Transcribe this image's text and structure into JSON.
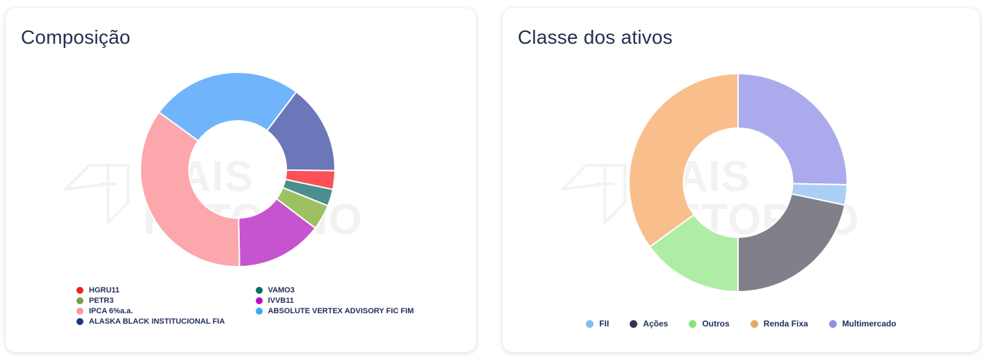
{
  "page_background": "#ffffff",
  "text_colors": {
    "title": "#223050",
    "legend": "#1f2c5c",
    "watermark": "#f2f2f2"
  },
  "cards": [
    {
      "title": "Composição",
      "watermark": {
        "line1": "MAIS",
        "line2": "RETORNO"
      }
    },
    {
      "title": "Classe dos ativos",
      "watermark": {
        "line1": "MAIS",
        "line2": "RETORNO"
      }
    }
  ],
  "chart_data": [
    {
      "type": "pie",
      "subtype": "donut",
      "title": "Composição",
      "unit": "percent_of_total",
      "series": [
        {
          "label": "HGRU11",
          "value": 3.1,
          "slice_color": "#fb5157",
          "legend_color": "#ee2128"
        },
        {
          "label": "PETR3",
          "value": 4.2,
          "slice_color": "#9dc162",
          "legend_color": "#7d9e3e"
        },
        {
          "label": "IPCA 6%a.a.",
          "value": 35.3,
          "slice_color": "#fba7ac",
          "legend_color": "#f7989f"
        },
        {
          "label": "ALASKA BLACK INSTITUCIONAL FIA",
          "value": 14.9,
          "slice_color": "#6b77b8",
          "legend_color": "#203487"
        },
        {
          "label": "VAMO3",
          "value": 2.8,
          "slice_color": "#4b8e91",
          "legend_color": "#0a6e68"
        },
        {
          "label": "IVVB11",
          "value": 14.4,
          "slice_color": "#c653cf",
          "legend_color": "#bb10c4"
        },
        {
          "label": "ABSOLUTE VERTEX ADVISORY FIC FIM",
          "value": 25.3,
          "slice_color": "#70b5fc",
          "legend_color": "#3ea5fd"
        }
      ],
      "draw_order_clockwise": [
        "ABSOLUTE VERTEX ADVISORY FIC FIM",
        "ALASKA BLACK INSTITUCIONAL FIA",
        "HGRU11",
        "VAMO3",
        "PETR3",
        "IVVB11",
        "IPCA 6%a.a."
      ],
      "start_angle_deg_from_top": -54,
      "donut_hole_ratio": 0.5,
      "outer_radius_px": 140,
      "legend_position": "bottom-left",
      "legend_columns": 2,
      "data_labels": "none",
      "grid": "off"
    },
    {
      "type": "pie",
      "subtype": "donut",
      "title": "Classe dos ativos",
      "unit": "percent_of_total",
      "series": [
        {
          "label": "FII",
          "value": 3.0,
          "slice_color": "#abcff4",
          "legend_color": "#7fbfee"
        },
        {
          "label": "Ações",
          "value": 21.7,
          "slice_color": "#80808a",
          "legend_color": "#33334d"
        },
        {
          "label": "Outros",
          "value": 15.0,
          "slice_color": "#afeda7",
          "legend_color": "#86e47a"
        },
        {
          "label": "Renda Fixa",
          "value": 35.0,
          "slice_color": "#f8bf8d",
          "legend_color": "#e8a75f"
        },
        {
          "label": "Multimercado",
          "value": 25.3,
          "slice_color": "#aaaaec",
          "legend_color": "#8f8fe6"
        }
      ],
      "draw_order_clockwise": [
        "Multimercado",
        "FII",
        "Ações",
        "Outros",
        "Renda Fixa"
      ],
      "start_angle_deg_from_top": 0,
      "donut_hole_ratio": 0.5,
      "outer_radius_px": 157,
      "legend_position": "bottom-center",
      "legend_columns": 1,
      "data_labels": "none",
      "grid": "off"
    }
  ]
}
